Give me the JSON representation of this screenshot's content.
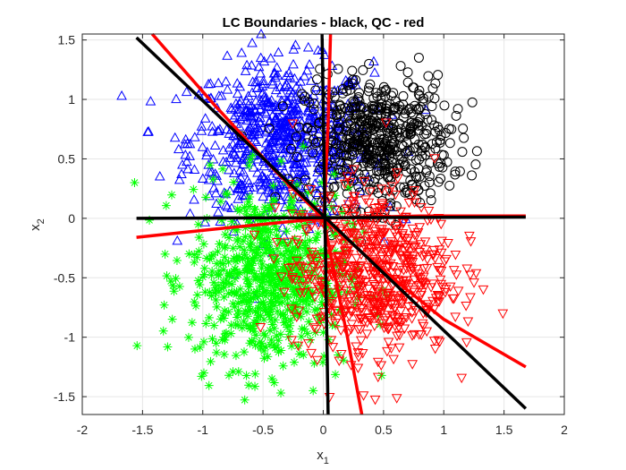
{
  "chart_data": {
    "type": "scatter",
    "title": "LC Boundaries - black, QC - red",
    "xlabel": "x",
    "xlabel_sub": "1",
    "ylabel": "x",
    "ylabel_sub": "2",
    "xlim": [
      -2,
      2
    ],
    "ylim": [
      -1.65,
      1.55
    ],
    "xticks": [
      -2,
      -1.5,
      -1,
      -0.5,
      0,
      0.5,
      1,
      1.5,
      2
    ],
    "xtick_labels": [
      "-2",
      "-1.5",
      "-1",
      "-0.5",
      "0",
      "0.5",
      "1",
      "1.5",
      "2"
    ],
    "yticks": [
      -1.5,
      -1,
      -0.5,
      0,
      0.5,
      1,
      1.5
    ],
    "ytick_labels": [
      "-1.5",
      "-1",
      "-0.5",
      "0",
      "0.5",
      "1",
      "1.5"
    ],
    "grid": true,
    "clusters": [
      {
        "marker": "triangle-up",
        "color": "#0000ff",
        "center": [
          -0.35,
          0.65
        ],
        "spread": [
          0.38,
          0.33
        ],
        "count": 700
      },
      {
        "marker": "circle",
        "color": "#000000",
        "center": [
          0.45,
          0.65
        ],
        "spread": [
          0.3,
          0.27
        ],
        "count": 550
      },
      {
        "marker": "asterisk",
        "color": "#00ff00",
        "center": [
          -0.45,
          -0.5
        ],
        "spread": [
          0.33,
          0.38
        ],
        "count": 700
      },
      {
        "marker": "triangle-down",
        "color": "#ff0000",
        "center": [
          0.4,
          -0.45
        ],
        "spread": [
          0.33,
          0.35
        ],
        "count": 650
      }
    ],
    "lc_boundaries": {
      "color": "#000000",
      "lines": [
        [
          [
            -1.55,
            1.52
          ],
          [
            1.68,
            -1.6
          ]
        ],
        [
          [
            -0.01,
            1.55
          ],
          [
            0.04,
            -1.65
          ]
        ],
        [
          [
            -1.55,
            0.0
          ],
          [
            1.68,
            0.01
          ]
        ]
      ]
    },
    "qc_boundaries": {
      "color": "#ff0000",
      "curves": [
        [
          [
            -1.42,
            1.55
          ],
          [
            -0.9,
            0.95
          ],
          [
            -0.4,
            0.4
          ],
          [
            0.0,
            0.0
          ],
          [
            0.45,
            -0.4
          ],
          [
            1.0,
            -0.85
          ],
          [
            1.68,
            -1.25
          ]
        ],
        [
          [
            0.06,
            1.55
          ],
          [
            0.04,
            0.8
          ],
          [
            0.01,
            0.1
          ],
          [
            0.0,
            0.0
          ],
          [
            0.1,
            -0.5
          ],
          [
            0.2,
            -1.0
          ],
          [
            0.32,
            -1.65
          ]
        ],
        [
          [
            -1.55,
            -0.16
          ],
          [
            -0.8,
            -0.08
          ],
          [
            0.0,
            0.0
          ],
          [
            0.8,
            0.02
          ],
          [
            1.68,
            0.02
          ]
        ]
      ]
    }
  }
}
